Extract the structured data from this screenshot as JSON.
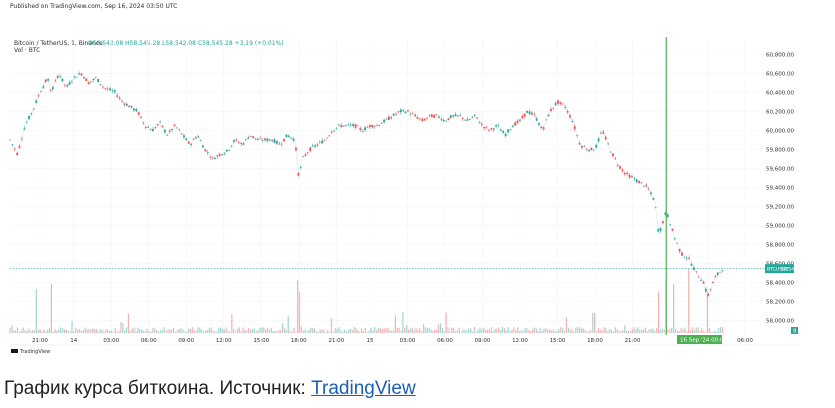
{
  "header": {
    "published": "Published on TradingView.com, Sep 16, 2024 03:50 UTC",
    "symbol_line": "Bitcoin / TetherUS, 1, Binance",
    "ohlc": "O58,542.08  H58,545.28  L58,542.08  C58,545.28  +3.19 (+0.01%)",
    "volume_line": "Vol · BTC"
  },
  "price_tag": {
    "label": "BTCUSDT",
    "value": "58,545.28",
    "color": "#26a69a"
  },
  "crosshair_label": "16 Sep '24   00:00",
  "volume_badge": "8",
  "footer_logo": "TradingView",
  "caption": {
    "text": "График курса биткоина. Источник: ",
    "link": "TradingView"
  },
  "colors": {
    "up": "#26a69a",
    "down": "#ef5350",
    "crosshair": "#4caf50",
    "grid": "#f0f3fa"
  },
  "chart_data": {
    "type": "line",
    "ylim": [
      57900,
      60950
    ],
    "y_ticks": [
      {
        "v": 60800,
        "label": "60,800.00"
      },
      {
        "v": 60600,
        "label": "60,600.00"
      },
      {
        "v": 60400,
        "label": "60,400.00"
      },
      {
        "v": 60200,
        "label": "60,200.00"
      },
      {
        "v": 60000,
        "label": "60,000.00"
      },
      {
        "v": 59800,
        "label": "59,800.00"
      },
      {
        "v": 59600,
        "label": "59,600.00"
      },
      {
        "v": 59400,
        "label": "59,400.00"
      },
      {
        "v": 59200,
        "label": "59,200.00"
      },
      {
        "v": 59000,
        "label": "59,000.00"
      },
      {
        "v": 58800,
        "label": "58,800.00"
      },
      {
        "v": 58600,
        "label": "58,600.00"
      },
      {
        "v": 58400,
        "label": "58,400.00"
      },
      {
        "v": 58200,
        "label": "58,200.00"
      },
      {
        "v": 58000,
        "label": "58,000.00"
      }
    ],
    "x_ticks": [
      {
        "t": 0.04,
        "label": "21:00"
      },
      {
        "t": 0.085,
        "label": "14"
      },
      {
        "t": 0.135,
        "label": "03:00"
      },
      {
        "t": 0.185,
        "label": "06:00"
      },
      {
        "t": 0.235,
        "label": "09:00"
      },
      {
        "t": 0.285,
        "label": "12:00"
      },
      {
        "t": 0.335,
        "label": "15:00"
      },
      {
        "t": 0.385,
        "label": "18:00"
      },
      {
        "t": 0.435,
        "label": "21:00"
      },
      {
        "t": 0.48,
        "label": "15"
      },
      {
        "t": 0.53,
        "label": "03:00"
      },
      {
        "t": 0.58,
        "label": "06:00"
      },
      {
        "t": 0.63,
        "label": "09:00"
      },
      {
        "t": 0.68,
        "label": "12:00"
      },
      {
        "t": 0.73,
        "label": "15:00"
      },
      {
        "t": 0.78,
        "label": "18:00"
      },
      {
        "t": 0.83,
        "label": "21:00"
      },
      {
        "t": 0.93,
        "label": "03:00"
      },
      {
        "t": 0.98,
        "label": "06:00"
      }
    ],
    "crosshair_t": 0.875,
    "last_price": 58545.28,
    "series": [
      {
        "values": [
          {
            "t": 0.0,
            "p": 59900
          },
          {
            "t": 0.01,
            "p": 59750
          },
          {
            "t": 0.02,
            "p": 60050
          },
          {
            "t": 0.03,
            "p": 60200
          },
          {
            "t": 0.04,
            "p": 60400
          },
          {
            "t": 0.05,
            "p": 60550
          },
          {
            "t": 0.055,
            "p": 60400
          },
          {
            "t": 0.065,
            "p": 60600
          },
          {
            "t": 0.075,
            "p": 60450
          },
          {
            "t": 0.085,
            "p": 60550
          },
          {
            "t": 0.095,
            "p": 60600
          },
          {
            "t": 0.105,
            "p": 60500
          },
          {
            "t": 0.115,
            "p": 60550
          },
          {
            "t": 0.125,
            "p": 60450
          },
          {
            "t": 0.14,
            "p": 60400
          },
          {
            "t": 0.15,
            "p": 60300
          },
          {
            "t": 0.16,
            "p": 60250
          },
          {
            "t": 0.17,
            "p": 60200
          },
          {
            "t": 0.18,
            "p": 60050
          },
          {
            "t": 0.19,
            "p": 60000
          },
          {
            "t": 0.2,
            "p": 60080
          },
          {
            "t": 0.21,
            "p": 59950
          },
          {
            "t": 0.22,
            "p": 60050
          },
          {
            "t": 0.23,
            "p": 59950
          },
          {
            "t": 0.24,
            "p": 59850
          },
          {
            "t": 0.25,
            "p": 59950
          },
          {
            "t": 0.26,
            "p": 59800
          },
          {
            "t": 0.27,
            "p": 59700
          },
          {
            "t": 0.28,
            "p": 59750
          },
          {
            "t": 0.29,
            "p": 59780
          },
          {
            "t": 0.3,
            "p": 59900
          },
          {
            "t": 0.31,
            "p": 59850
          },
          {
            "t": 0.32,
            "p": 59950
          },
          {
            "t": 0.33,
            "p": 59900
          },
          {
            "t": 0.34,
            "p": 59900
          },
          {
            "t": 0.35,
            "p": 59900
          },
          {
            "t": 0.36,
            "p": 59850
          },
          {
            "t": 0.37,
            "p": 59950
          },
          {
            "t": 0.38,
            "p": 59900
          },
          {
            "t": 0.385,
            "p": 59500
          },
          {
            "t": 0.39,
            "p": 59700
          },
          {
            "t": 0.4,
            "p": 59800
          },
          {
            "t": 0.41,
            "p": 59850
          },
          {
            "t": 0.42,
            "p": 59900
          },
          {
            "t": 0.43,
            "p": 60000
          },
          {
            "t": 0.44,
            "p": 60050
          },
          {
            "t": 0.45,
            "p": 60050
          },
          {
            "t": 0.46,
            "p": 60050
          },
          {
            "t": 0.47,
            "p": 60000
          },
          {
            "t": 0.48,
            "p": 60050
          },
          {
            "t": 0.49,
            "p": 60050
          },
          {
            "t": 0.5,
            "p": 60100
          },
          {
            "t": 0.51,
            "p": 60150
          },
          {
            "t": 0.52,
            "p": 60200
          },
          {
            "t": 0.53,
            "p": 60200
          },
          {
            "t": 0.54,
            "p": 60150
          },
          {
            "t": 0.55,
            "p": 60100
          },
          {
            "t": 0.56,
            "p": 60150
          },
          {
            "t": 0.57,
            "p": 60150
          },
          {
            "t": 0.58,
            "p": 60100
          },
          {
            "t": 0.59,
            "p": 60150
          },
          {
            "t": 0.6,
            "p": 60150
          },
          {
            "t": 0.61,
            "p": 60100
          },
          {
            "t": 0.62,
            "p": 60150
          },
          {
            "t": 0.63,
            "p": 60050
          },
          {
            "t": 0.64,
            "p": 60000
          },
          {
            "t": 0.65,
            "p": 60050
          },
          {
            "t": 0.66,
            "p": 59950
          },
          {
            "t": 0.67,
            "p": 60050
          },
          {
            "t": 0.68,
            "p": 60100
          },
          {
            "t": 0.69,
            "p": 60200
          },
          {
            "t": 0.7,
            "p": 60150
          },
          {
            "t": 0.71,
            "p": 60000
          },
          {
            "t": 0.72,
            "p": 60200
          },
          {
            "t": 0.73,
            "p": 60300
          },
          {
            "t": 0.74,
            "p": 60250
          },
          {
            "t": 0.75,
            "p": 60100
          },
          {
            "t": 0.76,
            "p": 59850
          },
          {
            "t": 0.77,
            "p": 59800
          },
          {
            "t": 0.78,
            "p": 59800
          },
          {
            "t": 0.79,
            "p": 60000
          },
          {
            "t": 0.8,
            "p": 59800
          },
          {
            "t": 0.81,
            "p": 59650
          },
          {
            "t": 0.82,
            "p": 59550
          },
          {
            "t": 0.83,
            "p": 59500
          },
          {
            "t": 0.84,
            "p": 59450
          },
          {
            "t": 0.85,
            "p": 59400
          },
          {
            "t": 0.86,
            "p": 59250
          },
          {
            "t": 0.865,
            "p": 58900
          },
          {
            "t": 0.875,
            "p": 59150
          },
          {
            "t": 0.885,
            "p": 58900
          },
          {
            "t": 0.895,
            "p": 58700
          },
          {
            "t": 0.905,
            "p": 58650
          },
          {
            "t": 0.915,
            "p": 58500
          },
          {
            "t": 0.925,
            "p": 58400
          },
          {
            "t": 0.93,
            "p": 58250
          },
          {
            "t": 0.94,
            "p": 58450
          },
          {
            "t": 0.95,
            "p": 58545
          }
        ]
      }
    ]
  }
}
